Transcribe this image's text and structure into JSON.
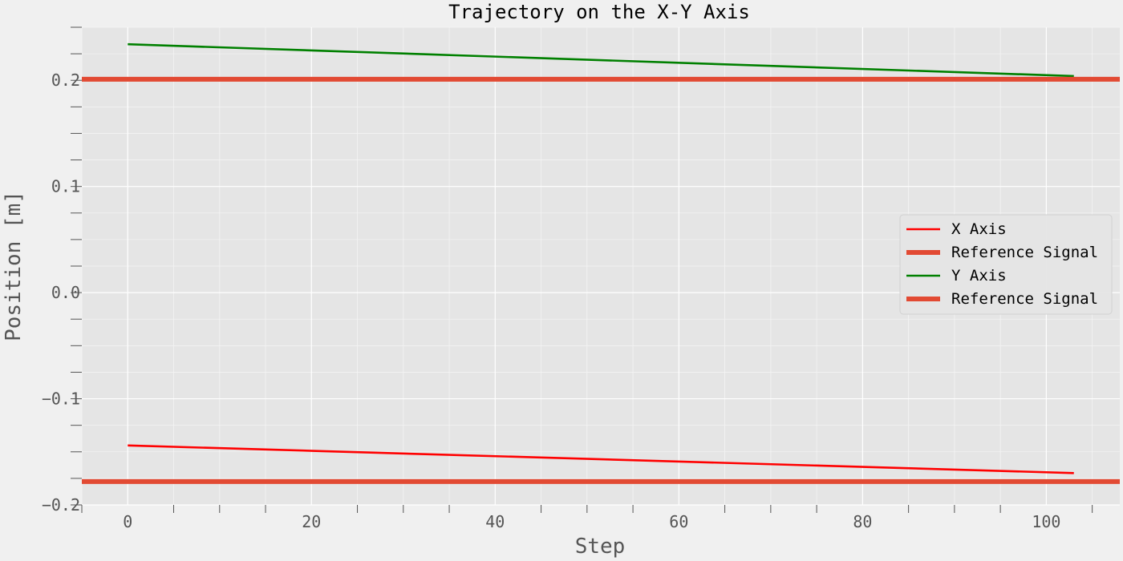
{
  "chart_data": {
    "type": "line",
    "title": "Trajectory on the X-Y Axis",
    "xlabel": "Step",
    "ylabel": "Position [m]",
    "xlim": [
      -5,
      108
    ],
    "ylim": [
      -0.2,
      0.25
    ],
    "grid": true,
    "legend_position": "center-right",
    "xticks": [
      0,
      20,
      40,
      60,
      80,
      100
    ],
    "xtick_labels": [
      "0",
      "20",
      "40",
      "60",
      "80",
      "100"
    ],
    "yticks": [
      -0.2,
      -0.1,
      0.0,
      0.1,
      0.2
    ],
    "ytick_labels": [
      "−0.2",
      "−0.1",
      "0.0",
      "0.1",
      "0.2"
    ],
    "series": [
      {
        "name": "X Axis",
        "color": "#ff0000",
        "x": [
          0,
          103
        ],
        "y": [
          -0.144,
          -0.17
        ]
      },
      {
        "name": "Reference Signal",
        "color": "#e24a33",
        "x": [
          -5,
          108
        ],
        "y": [
          -0.178,
          -0.178
        ],
        "kind": "reference"
      },
      {
        "name": "Y Axis",
        "color": "#008000",
        "x": [
          0,
          103
        ],
        "y": [
          0.234,
          0.204
        ]
      },
      {
        "name": "Reference Signal",
        "color": "#e24a33",
        "x": [
          -5,
          108
        ],
        "y": [
          0.201,
          0.201
        ],
        "kind": "reference"
      }
    ]
  }
}
